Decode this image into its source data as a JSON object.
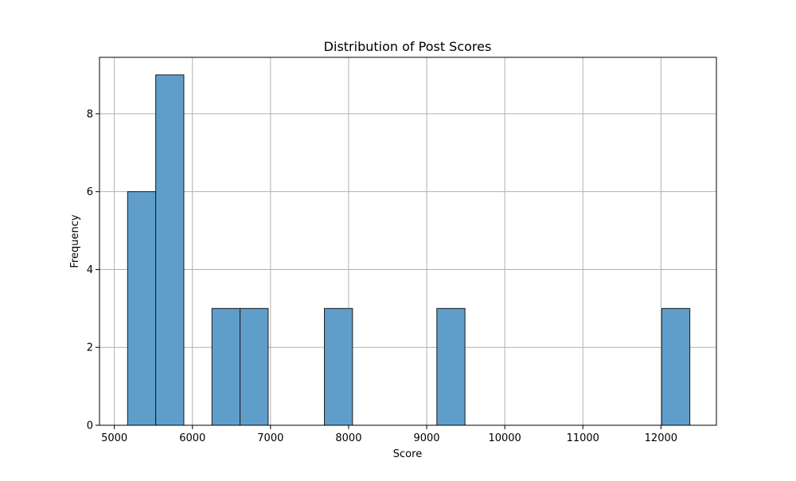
{
  "chart_data": {
    "type": "bar",
    "title": "Distribution of Post Scores",
    "xlabel": "Score",
    "ylabel": "Frequency",
    "xlim": [
      4810,
      12710
    ],
    "ylim": [
      0,
      9.45
    ],
    "x_ticks": [
      5000,
      6000,
      7000,
      8000,
      9000,
      10000,
      11000,
      12000
    ],
    "y_ticks": [
      0,
      2,
      4,
      6,
      8
    ],
    "grid": true,
    "bins": [
      {
        "x0": 5170,
        "x1": 5530,
        "value": 6
      },
      {
        "x0": 5530,
        "x1": 5890,
        "value": 9
      },
      {
        "x0": 5890,
        "x1": 6250,
        "value": 0
      },
      {
        "x0": 6250,
        "x1": 6610,
        "value": 3
      },
      {
        "x0": 6610,
        "x1": 6970,
        "value": 3
      },
      {
        "x0": 6970,
        "x1": 7330,
        "value": 0
      },
      {
        "x0": 7330,
        "x1": 7690,
        "value": 0
      },
      {
        "x0": 7690,
        "x1": 8050,
        "value": 3
      },
      {
        "x0": 8050,
        "x1": 8410,
        "value": 0
      },
      {
        "x0": 8410,
        "x1": 8770,
        "value": 0
      },
      {
        "x0": 8770,
        "x1": 9130,
        "value": 0
      },
      {
        "x0": 9130,
        "x1": 9490,
        "value": 3
      },
      {
        "x0": 9490,
        "x1": 9850,
        "value": 0
      },
      {
        "x0": 9850,
        "x1": 10210,
        "value": 0
      },
      {
        "x0": 10210,
        "x1": 10570,
        "value": 0
      },
      {
        "x0": 10570,
        "x1": 10930,
        "value": 0
      },
      {
        "x0": 10930,
        "x1": 11290,
        "value": 0
      },
      {
        "x0": 11290,
        "x1": 11650,
        "value": 0
      },
      {
        "x0": 11650,
        "x1": 12010,
        "value": 0
      },
      {
        "x0": 12010,
        "x1": 12370,
        "value": 3
      }
    ],
    "colors": {
      "bar_fill": "#5f9ecb",
      "bar_edge": "#1a1a1a",
      "grid": "#b0b0b0",
      "axes": "#000000"
    }
  }
}
